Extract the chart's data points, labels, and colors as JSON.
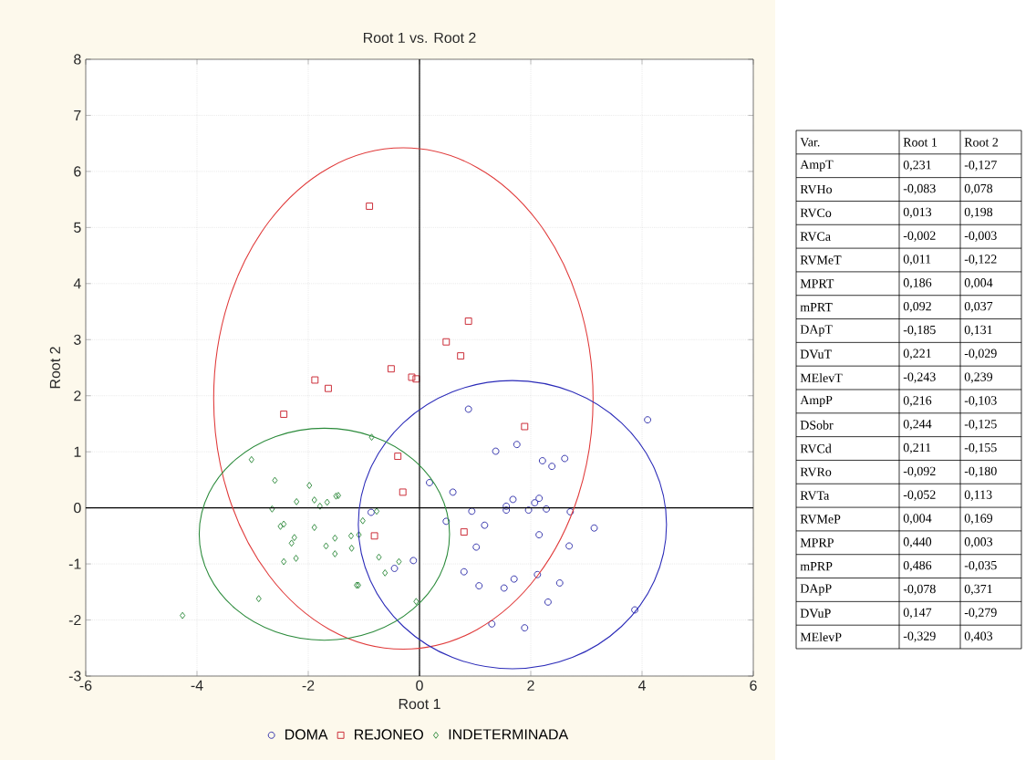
{
  "chart_data": [
    {
      "type": "scatter",
      "title": "Root 1 vs. Root 2",
      "xlabel": "Root 1",
      "ylabel": "Root 2",
      "xlim": [
        -6,
        6
      ],
      "ylim": [
        -3,
        8
      ],
      "xticks": [
        -6,
        -4,
        -2,
        0,
        2,
        4,
        6
      ],
      "yticks": [
        -3,
        -2,
        -1,
        0,
        1,
        2,
        3,
        4,
        5,
        6,
        7,
        8
      ],
      "grid": true,
      "legend": "bottom",
      "series": [
        {
          "name": "DOMA",
          "color": "#2a2aa8",
          "marker": "circle",
          "x": [
            0.88,
            4.1,
            1.37,
            1.75,
            2.21,
            2.38,
            2.61,
            0.18,
            0.6,
            1.68,
            2.15,
            2.07,
            1.56,
            1.56,
            1.96,
            2.28,
            2.71,
            0.94,
            0.48,
            1.17,
            3.14,
            2.15,
            1.02,
            2.69,
            -0.87,
            -0.11,
            -0.45,
            0.8,
            2.12,
            1.7,
            1.07,
            1.52,
            2.52,
            2.31,
            3.87,
            1.3,
            1.89
          ],
          "values": [
            1.76,
            1.57,
            1.01,
            1.13,
            0.84,
            0.74,
            0.88,
            0.45,
            0.28,
            0.15,
            0.17,
            0.09,
            0.03,
            -0.04,
            -0.04,
            -0.02,
            -0.07,
            -0.06,
            -0.24,
            -0.31,
            -0.36,
            -0.48,
            -0.7,
            -0.68,
            -0.08,
            -0.94,
            -1.08,
            -1.14,
            -1.19,
            -1.27,
            -1.39,
            -1.43,
            -1.34,
            -1.68,
            -1.82,
            -2.07,
            -2.14
          ]
        },
        {
          "name": "REJONEO",
          "color": "#c8202c",
          "marker": "square",
          "x": [
            -0.9,
            0.88,
            0.48,
            0.74,
            -0.51,
            -0.14,
            -0.06,
            -1.88,
            -1.64,
            -2.44,
            1.89,
            -0.39,
            -0.3,
            -0.81,
            0.8
          ],
          "values": [
            5.38,
            3.33,
            2.96,
            2.71,
            2.48,
            2.33,
            2.3,
            2.28,
            2.13,
            1.67,
            1.45,
            0.92,
            0.28,
            -0.5,
            -0.43
          ]
        },
        {
          "name": "INDETERMINADA",
          "color": "#2e8a3c",
          "marker": "diamond",
          "x": [
            -4.26,
            -3.02,
            -2.6,
            -1.98,
            -2.21,
            -1.89,
            -1.79,
            -1.66,
            -1.5,
            -1.46,
            -2.65,
            -2.44,
            -2.5,
            -2.25,
            -2.3,
            -1.89,
            -2.44,
            -2.22,
            -1.68,
            -1.52,
            -1.52,
            -1.23,
            -1.09,
            -1.22,
            -1.02,
            -0.77,
            -0.86,
            -0.73,
            -0.62,
            -0.37,
            -1.1,
            -1.13,
            -2.89,
            -0.06
          ],
          "values": [
            -1.92,
            0.86,
            0.49,
            0.4,
            0.11,
            0.14,
            0.03,
            0.1,
            0.21,
            0.22,
            -0.02,
            -0.29,
            -0.33,
            -0.53,
            -0.63,
            -0.35,
            -0.96,
            -0.9,
            -0.68,
            -0.54,
            -0.82,
            -0.5,
            -0.48,
            -0.72,
            -0.23,
            -0.06,
            1.26,
            -0.88,
            -1.16,
            -0.96,
            -1.38,
            -1.38,
            -1.62,
            -1.67
          ]
        }
      ]
    },
    {
      "type": "other",
      "annotations": [
        "Var.",
        "Root 1",
        "Root 2",
        "AmpT",
        "0,231",
        "-0,127",
        "RVHo",
        "-0,083",
        "0,078",
        "RVCo",
        "0,013",
        "0,198",
        "RVCa",
        "-0,002",
        "-0,003",
        "RVMeT",
        "0,011",
        "-0,122",
        "MPRT",
        "0,186",
        "0,004",
        "mPRT",
        "0,092",
        "0,037",
        "DApT",
        "-0,185",
        "0,131",
        "DVuT",
        "0,221",
        "-0,029",
        "MElevT",
        "-0,243",
        "0,239",
        "AmpP",
        "0,216",
        "-0,103",
        "DSobr",
        "0,244",
        "-0,125",
        "RVCd",
        "0,211",
        "-0,155",
        "RVRo",
        "-0,092",
        "-0,180",
        "RVTa",
        "-0,052",
        "0,113",
        "RVMeP",
        "0,004",
        "0,169",
        "MPRP",
        "0,440",
        "0,003",
        "mPRP",
        "0,486",
        "-0,035",
        "DApP",
        "-0,078",
        "0,371",
        "DVuP",
        "0,147",
        "-0,279",
        "MElevP",
        "-0,329",
        "0,403"
      ]
    }
  ]
}
